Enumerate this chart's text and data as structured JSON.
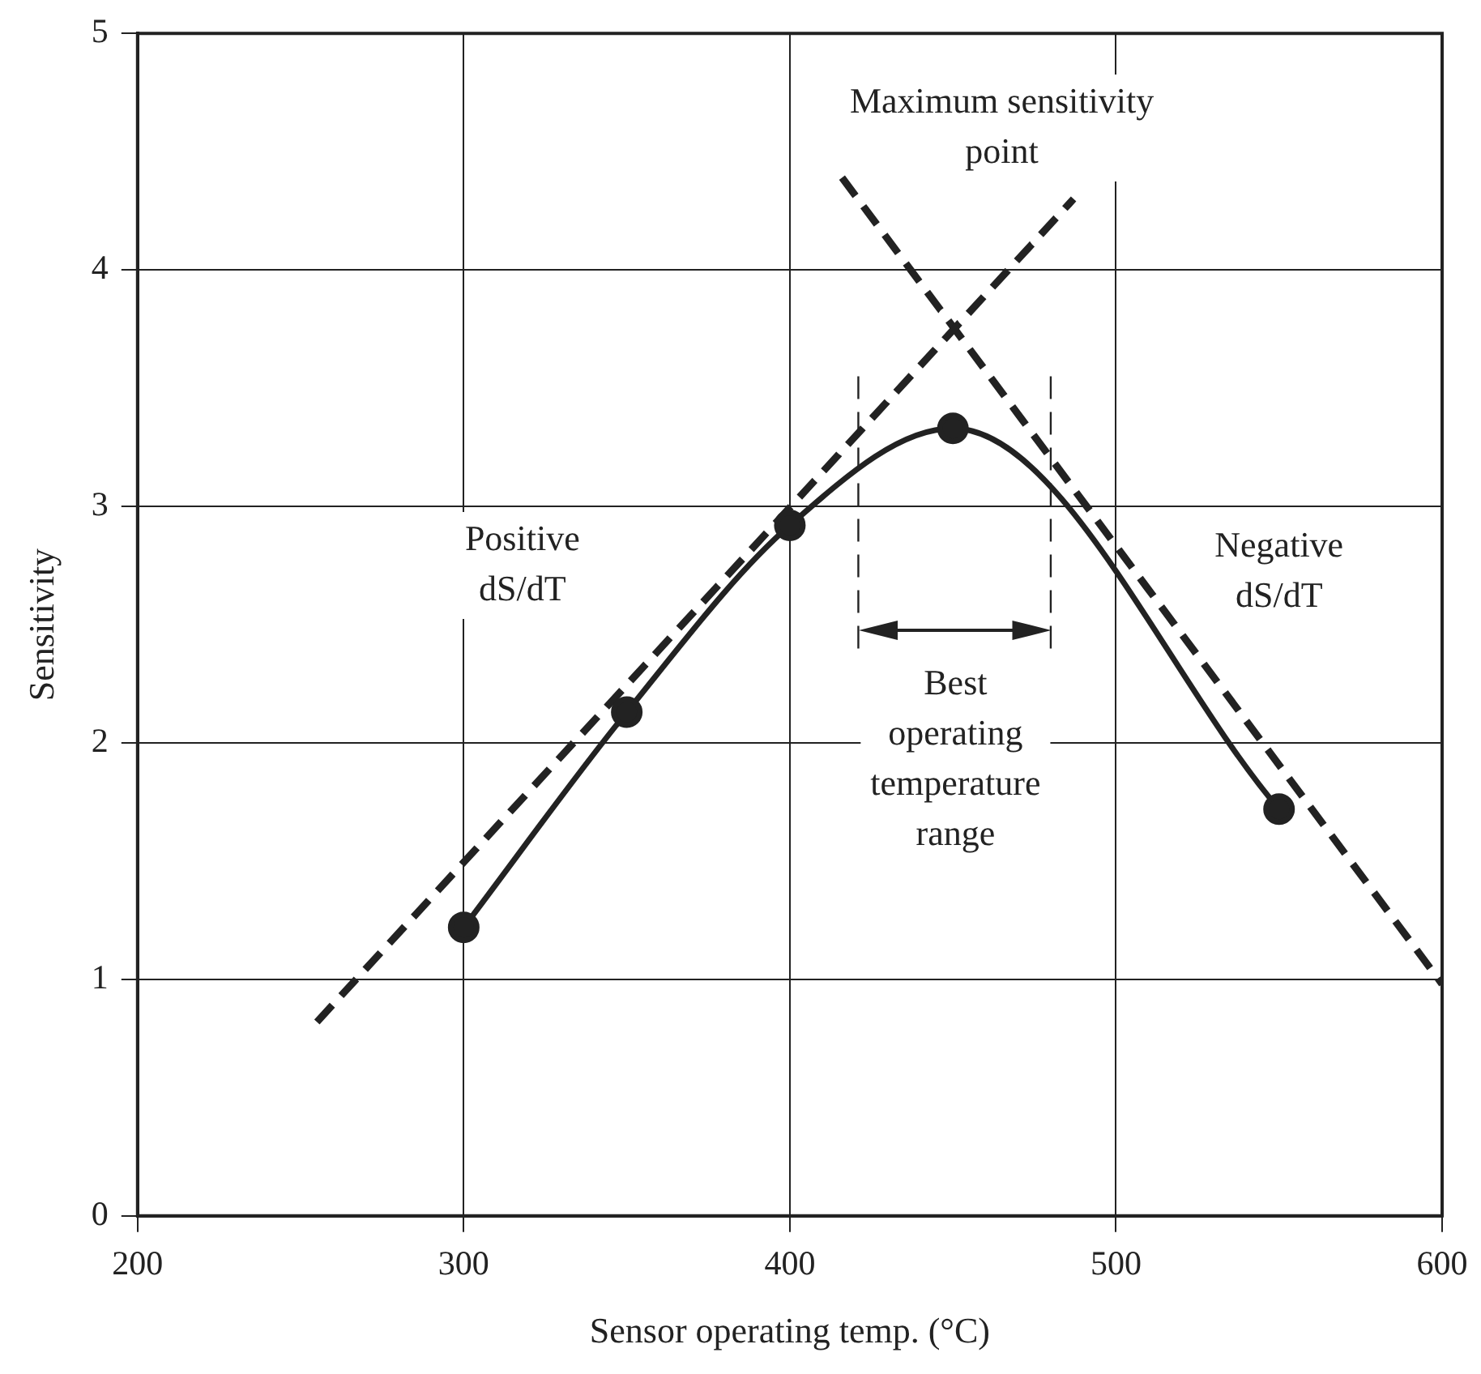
{
  "chart_data": {
    "type": "line",
    "xlabel": "Sensor operating temp. (°C)",
    "ylabel": "Sensitivity",
    "xlim": [
      200,
      600
    ],
    "xticks": [
      200,
      300,
      400,
      500,
      600
    ],
    "ylim": [
      0,
      5
    ],
    "yticks": [
      0,
      1,
      2,
      3,
      4,
      5
    ],
    "grid": true,
    "legend": false,
    "series": [
      {
        "color": "#222222",
        "x": [
          300,
          350,
          400,
          450,
          550
        ],
        "values": [
          1.22,
          2.13,
          2.92,
          3.33,
          1.72
        ],
        "marker": "circle",
        "line_style": "solid"
      },
      {
        "color": "#222222",
        "x": [
          255,
          487
        ],
        "values": [
          0.82,
          4.3
        ],
        "marker": "none",
        "line_style": "dashed"
      },
      {
        "color": "#222222",
        "x": [
          416,
          600
        ],
        "values": [
          4.39,
          0.98
        ],
        "marker": "none",
        "line_style": "dashed"
      }
    ],
    "ref_lines": [
      {
        "axis": "x",
        "value": 421,
        "line_style": "dashed",
        "color": "#222222"
      },
      {
        "axis": "x",
        "value": 480,
        "line_style": "dashed",
        "color": "#222222"
      }
    ],
    "annotations": [
      "Maximum sensitivity\npoint",
      "Positive\ndS/dT",
      "Negative\ndS/dT",
      "Best\noperating\ntemperature\nrange"
    ]
  }
}
